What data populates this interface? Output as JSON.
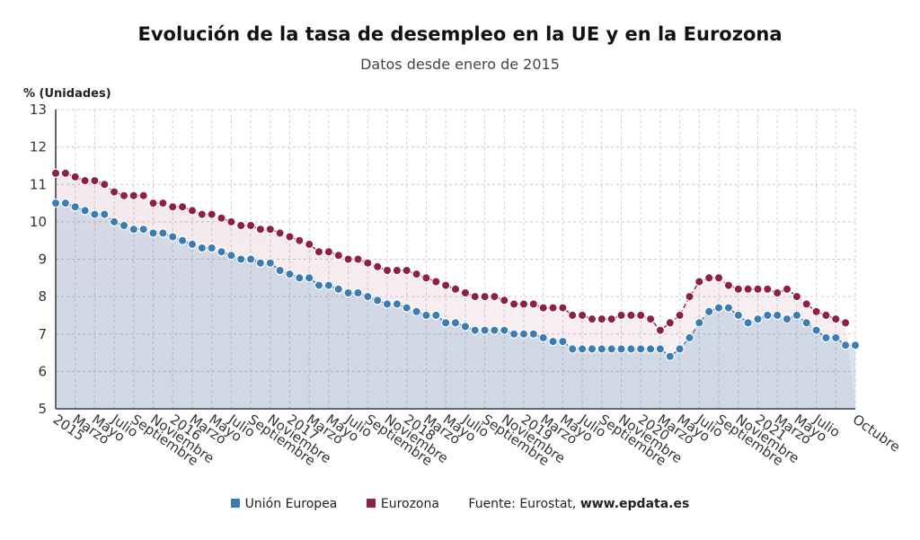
{
  "chart_data": {
    "type": "line",
    "title": "Evolución de la tasa de desempleo en la UE y en la Eurozona",
    "subtitle": "Datos desde enero de 2015",
    "ylabel": "% (Unidades)",
    "ylim": [
      5,
      13
    ],
    "yticks": [
      5,
      6,
      7,
      8,
      9,
      10,
      11,
      12,
      13
    ],
    "grid": true,
    "legend_position": "bottom",
    "xtick_labels": [
      "2015",
      "Marzo",
      "Mayo",
      "Julio",
      "Septiembre",
      "Noviembre",
      "2016",
      "Marzo",
      "Mayo",
      "Julio",
      "Septiembre",
      "Noviembre",
      "2017",
      "Marzo",
      "Mayo",
      "Julio",
      "Septiembre",
      "Noviembre",
      "2018",
      "Marzo",
      "Mayo",
      "Julio",
      "Septiembre",
      "Noviembre",
      "2019",
      "Marzo",
      "Mayo",
      "Julio",
      "Septiembre",
      "Noviembre",
      "2020",
      "Marzo",
      "Mayo",
      "Julio",
      "Septiembre",
      "Noviembre",
      "2021",
      "Marzo",
      "Mayo",
      "Julio",
      "Octubre"
    ],
    "series": [
      {
        "name": "Unión Europea",
        "color": "#3a7db5",
        "values": [
          10.5,
          10.5,
          10.4,
          10.3,
          10.2,
          10.2,
          10.0,
          9.9,
          9.8,
          9.8,
          9.7,
          9.7,
          9.6,
          9.5,
          9.4,
          9.3,
          9.3,
          9.2,
          9.1,
          9.0,
          9.0,
          8.9,
          8.9,
          8.7,
          8.6,
          8.5,
          8.5,
          8.3,
          8.3,
          8.2,
          8.1,
          8.1,
          8.0,
          7.9,
          7.8,
          7.8,
          7.7,
          7.6,
          7.5,
          7.5,
          7.3,
          7.3,
          7.2,
          7.1,
          7.1,
          7.1,
          7.1,
          7.0,
          7.0,
          7.0,
          6.9,
          6.8,
          6.8,
          6.6,
          6.6,
          6.6,
          6.6,
          6.6,
          6.6,
          6.6,
          6.6,
          6.6,
          6.6,
          6.4,
          6.6,
          6.9,
          7.3,
          7.6,
          7.7,
          7.7,
          7.5,
          7.3,
          7.4,
          7.5,
          7.5,
          7.4,
          7.5,
          7.3,
          7.1,
          6.9,
          6.9,
          6.7,
          6.7
        ]
      },
      {
        "name": "Eurozona",
        "color": "#8e1f47",
        "values": [
          11.3,
          11.3,
          11.2,
          11.1,
          11.1,
          11.0,
          10.8,
          10.7,
          10.7,
          10.7,
          10.5,
          10.5,
          10.4,
          10.4,
          10.3,
          10.2,
          10.2,
          10.1,
          10.0,
          9.9,
          9.9,
          9.8,
          9.8,
          9.7,
          9.6,
          9.5,
          9.4,
          9.2,
          9.2,
          9.1,
          9.0,
          9.0,
          8.9,
          8.8,
          8.7,
          8.7,
          8.7,
          8.6,
          8.5,
          8.4,
          8.3,
          8.2,
          8.1,
          8.0,
          8.0,
          8.0,
          7.9,
          7.8,
          7.8,
          7.8,
          7.7,
          7.7,
          7.7,
          7.5,
          7.5,
          7.4,
          7.4,
          7.4,
          7.5,
          7.5,
          7.5,
          7.4,
          7.1,
          7.3,
          7.5,
          8.0,
          8.4,
          8.5,
          8.5,
          8.3,
          8.2,
          8.2,
          8.2,
          8.2,
          8.1,
          8.2,
          8.0,
          7.8,
          7.6,
          7.5,
          7.4,
          7.3
        ]
      }
    ]
  },
  "legend": {
    "eu_label": "Unión Europea",
    "ez_label": "Eurozona",
    "source_prefix": "Fuente: Eurostat, ",
    "source_site": "www.epdata.es"
  }
}
